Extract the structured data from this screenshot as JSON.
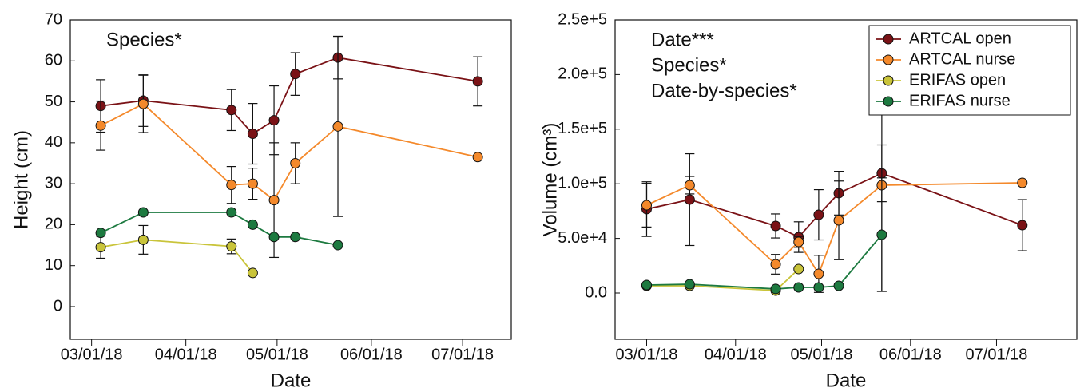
{
  "chart_data": [
    {
      "type": "line",
      "ylabel": "Height (cm)",
      "xlabel": "Date",
      "annotations": [
        "Species*"
      ],
      "xlim": [
        "2018-02-22",
        "2018-07-17"
      ],
      "ylim": [
        -8,
        70
      ],
      "xticks": [
        {
          "value": "2018-03-01",
          "label": "03/01/18"
        },
        {
          "value": "2018-04-01",
          "label": "04/01/18"
        },
        {
          "value": "2018-05-01",
          "label": "05/01/18"
        },
        {
          "value": "2018-06-01",
          "label": "06/01/18"
        },
        {
          "value": "2018-07-01",
          "label": "07/01/18"
        }
      ],
      "yticks": [
        0,
        10,
        20,
        30,
        40,
        50,
        60,
        70
      ],
      "series": [
        {
          "color": "#7a1216",
          "x": [
            "2018-03-04",
            "2018-03-18",
            "2018-04-16",
            "2018-04-23",
            "2018-04-30",
            "2018-05-07",
            "2018-05-21",
            "2018-07-06"
          ],
          "values": [
            49,
            50.3,
            48,
            42.2,
            45.5,
            56.8,
            60.8,
            55
          ],
          "errors": [
            6.4,
            6.3,
            5,
            7.4,
            8.4,
            5.2,
            5.2,
            6
          ]
        },
        {
          "color": "#f4892b",
          "x": [
            "2018-03-04",
            "2018-03-18",
            "2018-04-16",
            "2018-04-23",
            "2018-04-30",
            "2018-05-07",
            "2018-05-21",
            "2018-07-06"
          ],
          "values": [
            44.2,
            49.5,
            29.7,
            30,
            26,
            35,
            44,
            36.5
          ],
          "errors": [
            6,
            7,
            4.5,
            3.8,
            14,
            5,
            22,
            null
          ]
        },
        {
          "color": "#c9c43a",
          "x": [
            "2018-03-04",
            "2018-03-18",
            "2018-04-16",
            "2018-04-23"
          ],
          "values": [
            14.5,
            16.3,
            14.7,
            8.2
          ],
          "errors": [
            2.7,
            3.5,
            1.8,
            null
          ]
        },
        {
          "color": "#1d7a40",
          "x": [
            "2018-03-04",
            "2018-03-18",
            "2018-04-16",
            "2018-04-23",
            "2018-04-30",
            "2018-05-07",
            "2018-05-21"
          ],
          "values": [
            18,
            23,
            23,
            20,
            17,
            17,
            15
          ],
          "errors": [
            null,
            null,
            null,
            null,
            null,
            null,
            null
          ]
        }
      ]
    },
    {
      "type": "line",
      "ylabel": "Volume (cm³)",
      "xlabel": "Date",
      "annotations": [
        "Date***",
        "Species*",
        "Date-by-species*"
      ],
      "legend": "upper right",
      "xlim": [
        "2018-02-18",
        "2018-07-29"
      ],
      "ylim": [
        -42400,
        250000
      ],
      "xticks": [
        {
          "value": "2018-03-01",
          "label": "03/01/18"
        },
        {
          "value": "2018-04-01",
          "label": "04/01/18"
        },
        {
          "value": "2018-05-01",
          "label": "05/01/18"
        },
        {
          "value": "2018-06-01",
          "label": "06/01/18"
        },
        {
          "value": "2018-07-01",
          "label": "07/01/18"
        }
      ],
      "yticks": [
        {
          "value": 0,
          "label": "0.0"
        },
        {
          "value": 50000,
          "label": "5.0e+4"
        },
        {
          "value": 100000,
          "label": "1.0e+5"
        },
        {
          "value": 150000,
          "label": "1.5e+5"
        },
        {
          "value": 200000,
          "label": "2.0e+5"
        },
        {
          "value": 250000,
          "label": "2.5e+5"
        }
      ],
      "series": [
        {
          "name": "ARTCAL open",
          "color": "#7a1216",
          "x": [
            "2018-03-01",
            "2018-03-16",
            "2018-04-15",
            "2018-04-23",
            "2018-04-30",
            "2018-05-07",
            "2018-05-22",
            "2018-07-10"
          ],
          "values": [
            76800,
            85500,
            61400,
            51200,
            71600,
            91400,
            109600,
            62100
          ],
          "errors": [
            25000,
            42000,
            11000,
            14000,
            23000,
            20000,
            26000,
            23400
          ]
        },
        {
          "name": "ARTCAL nurse",
          "color": "#f4892b",
          "x": [
            "2018-03-01",
            "2018-03-16",
            "2018-04-15",
            "2018-04-23",
            "2018-04-30",
            "2018-05-07",
            "2018-05-22",
            "2018-07-10"
          ],
          "values": [
            80400,
            98700,
            26300,
            46800,
            17500,
            66500,
            98700,
            100900
          ],
          "errors": [
            20000,
            8000,
            9000,
            5000,
            17000,
            36000,
            97000,
            null
          ]
        },
        {
          "name": "ERIFAS open",
          "color": "#c9c43a",
          "x": [
            "2018-03-01",
            "2018-03-16",
            "2018-04-15",
            "2018-04-23"
          ],
          "values": [
            6600,
            6600,
            2200,
            21900
          ],
          "errors": [
            null,
            null,
            null,
            null
          ]
        },
        {
          "name": "ERIFAS nurse",
          "color": "#1d7a40",
          "x": [
            "2018-03-01",
            "2018-03-16",
            "2018-04-15",
            "2018-04-23",
            "2018-04-30",
            "2018-05-07",
            "2018-05-22"
          ],
          "values": [
            7300,
            8000,
            3700,
            5100,
            5100,
            6600,
            53400
          ],
          "errors": [
            null,
            null,
            null,
            null,
            null,
            null,
            52000
          ]
        }
      ]
    }
  ]
}
